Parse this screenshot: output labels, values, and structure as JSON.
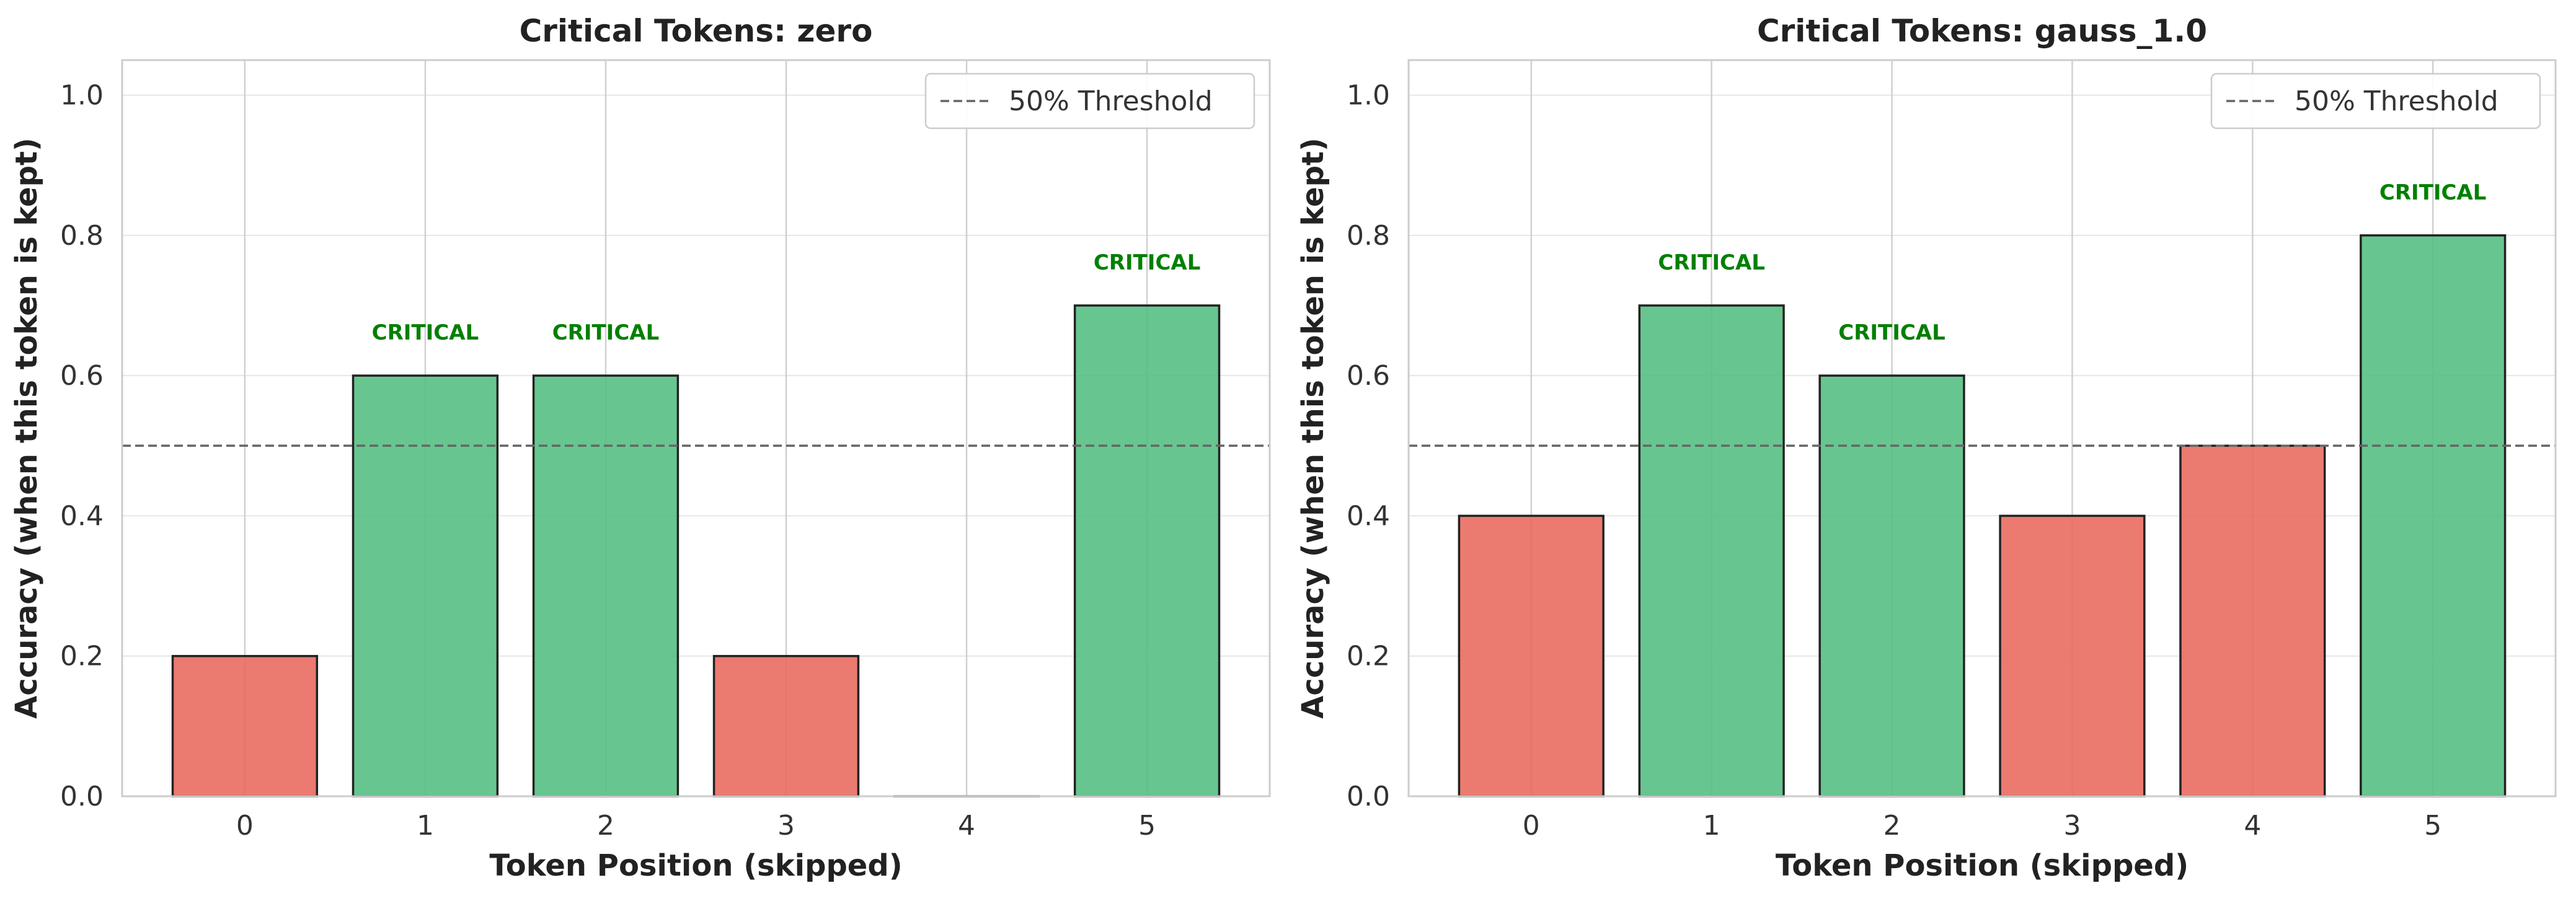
{
  "chart_data": [
    {
      "type": "bar",
      "title": "Critical Tokens: zero",
      "xlabel": "Token Position (skipped)",
      "ylabel": "Accuracy (when this token is kept)",
      "categories": [
        "0",
        "1",
        "2",
        "3",
        "4",
        "5"
      ],
      "values": [
        0.2,
        0.6,
        0.6,
        0.2,
        0.0,
        0.7
      ],
      "ylim": [
        0,
        1.05
      ],
      "yticks": [
        "0.0",
        "0.2",
        "0.4",
        "0.6",
        "0.8",
        "1.0"
      ],
      "threshold": 0.5,
      "threshold_label": "50% Threshold",
      "annotation": "CRITICAL",
      "legend_position": "top-right",
      "grid": true
    },
    {
      "type": "bar",
      "title": "Critical Tokens: gauss_1.0",
      "xlabel": "Token Position (skipped)",
      "ylabel": "Accuracy (when this token is kept)",
      "categories": [
        "0",
        "1",
        "2",
        "3",
        "4",
        "5"
      ],
      "values": [
        0.4,
        0.7,
        0.6,
        0.4,
        0.5,
        0.8
      ],
      "ylim": [
        0,
        1.05
      ],
      "yticks": [
        "0.0",
        "0.2",
        "0.4",
        "0.6",
        "0.8",
        "1.0"
      ],
      "threshold": 0.5,
      "threshold_label": "50% Threshold",
      "annotation": "CRITICAL",
      "legend_position": "top-right",
      "grid": true
    }
  ],
  "colors": {
    "critical_bar": "#52be80",
    "noncritical_bar": "#e8685c",
    "annotation": "#008000",
    "threshold_line": "#666666"
  }
}
